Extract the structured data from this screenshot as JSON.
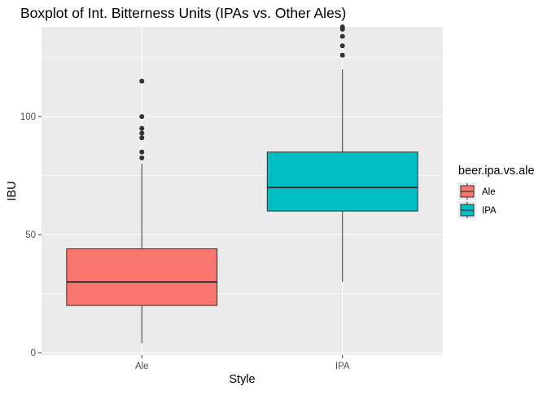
{
  "chart_data": {
    "type": "boxplot",
    "title": "Boxplot of Int. Bitterness Units (IPAs vs. Other Ales)",
    "xlabel": "Style",
    "ylabel": "IBU",
    "categories": [
      "Ale",
      "IPA"
    ],
    "y_ticks": [
      0,
      50,
      100
    ],
    "ylim": [
      -1,
      138
    ],
    "grid": true,
    "legend": {
      "title": "beer.ipa.vs.ale",
      "position": "right",
      "entries": [
        "Ale",
        "IPA"
      ]
    },
    "boxes": [
      {
        "category": "Ale",
        "lower_whisker": 4,
        "q1": 20,
        "median": 30,
        "q3": 44,
        "upper_whisker": 80,
        "outliers": [
          82.5,
          85,
          91,
          93,
          95,
          100,
          115
        ]
      },
      {
        "category": "IPA",
        "lower_whisker": 30,
        "q1": 60,
        "median": 70,
        "q3": 85,
        "upper_whisker": 120,
        "outliers": [
          126,
          130,
          134,
          137,
          138
        ]
      }
    ],
    "colors": {
      "Ale": "#F8766D",
      "IPA": "#00BFC4",
      "panel": "#EBEBEB"
    }
  }
}
